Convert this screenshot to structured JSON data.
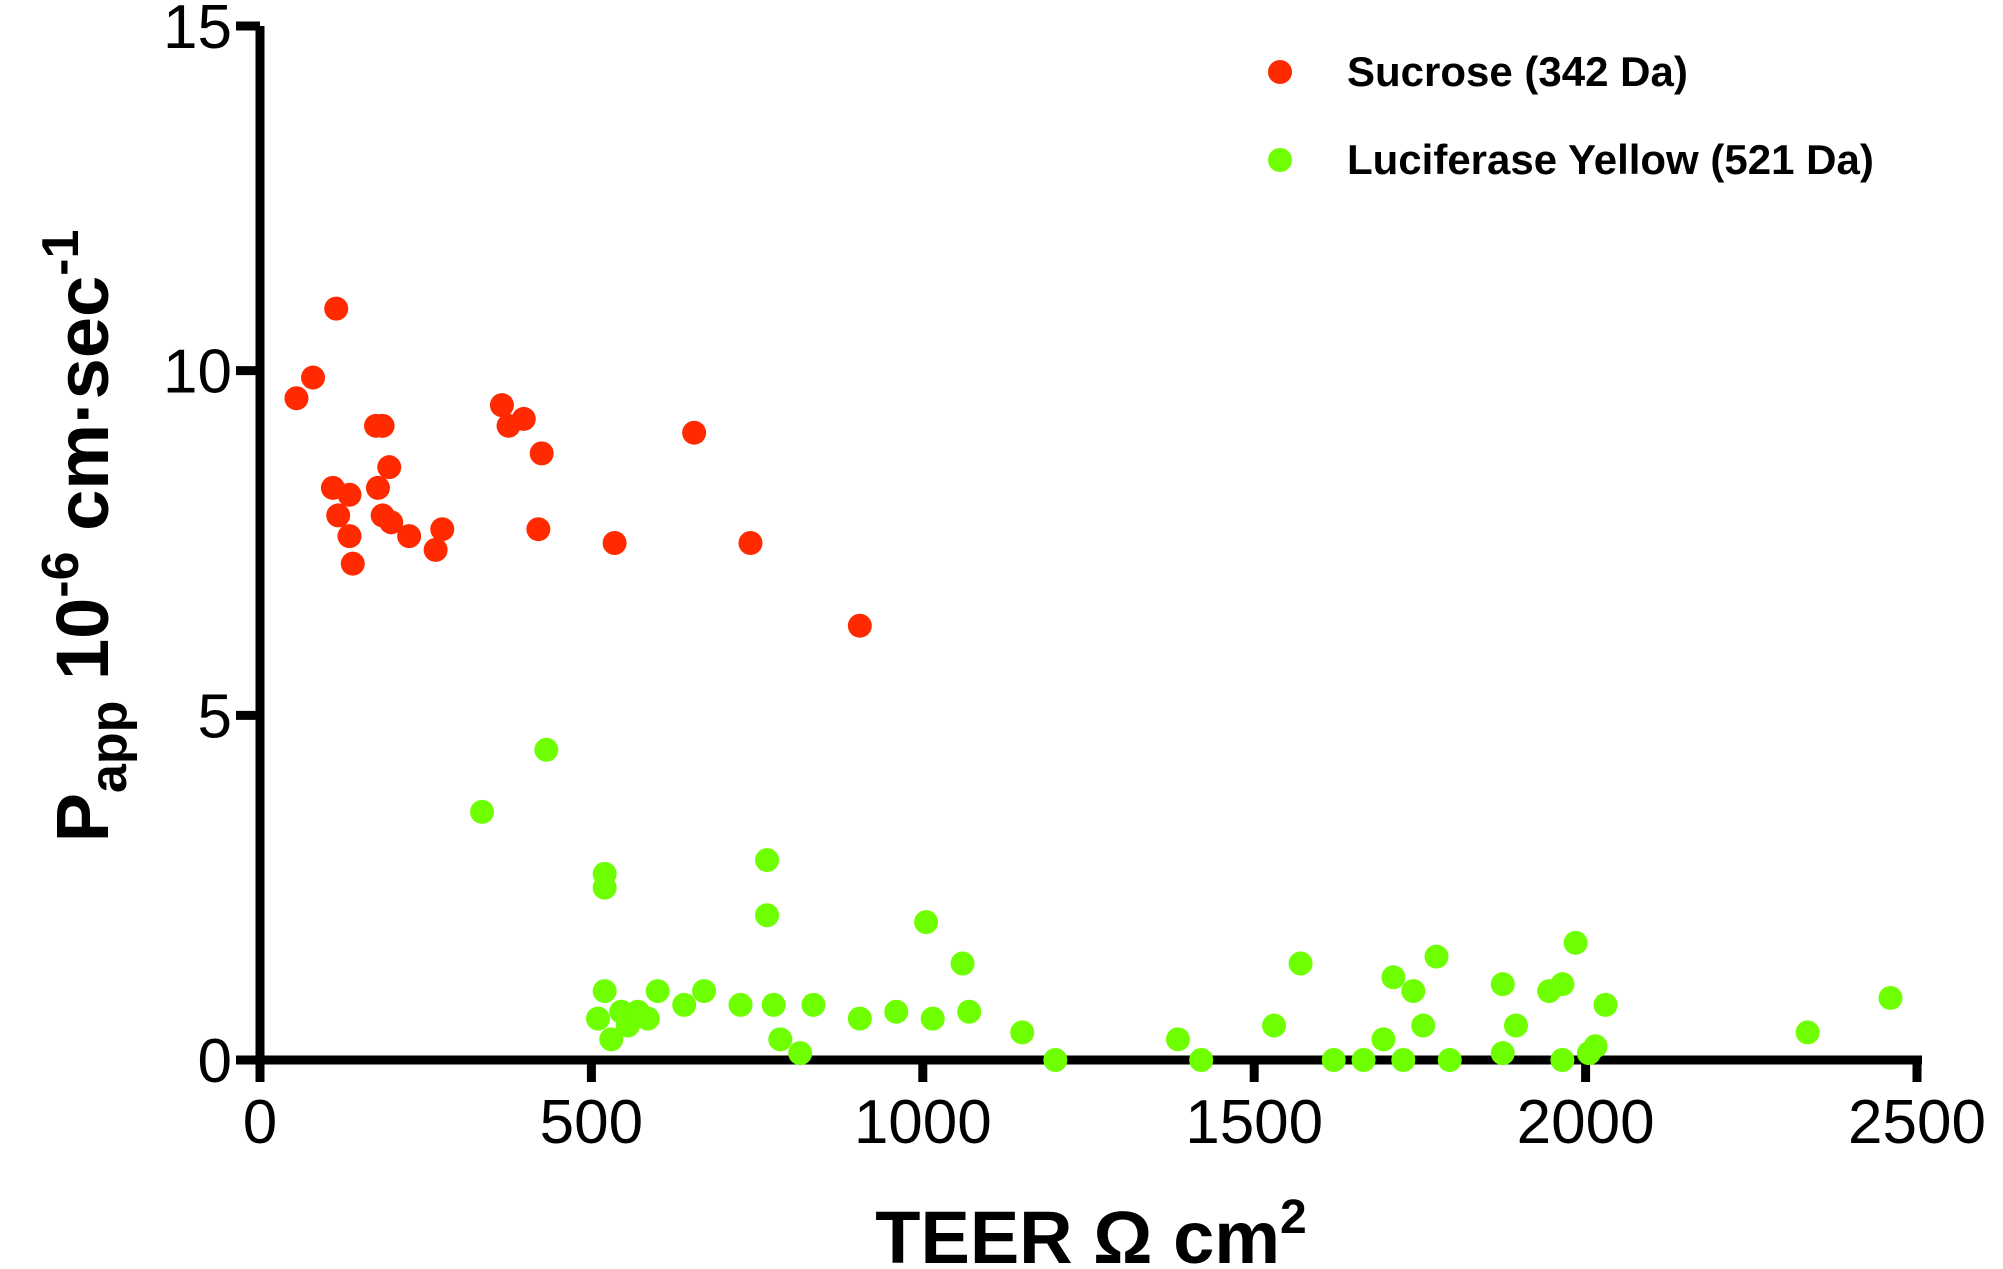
{
  "chart_data": {
    "type": "scatter",
    "title": "",
    "xlabel": "TEER Ω cm",
    "xlabel_superscript": "2",
    "ylabel": {
      "base": "P",
      "base_subscript": "app",
      "mid": " 10",
      "mid_superscript": "-6",
      "unit": " cm·sec",
      "unit_superscript": "-1"
    },
    "xlim": [
      0,
      2500
    ],
    "ylim": [
      0,
      15
    ],
    "xticks": [
      0,
      500,
      1000,
      1500,
      2000,
      2500
    ],
    "yticks": [
      0,
      5,
      10,
      15
    ],
    "xtick_labels": [
      "0",
      "500",
      "1000",
      "1500",
      "2000",
      "2500"
    ],
    "ytick_labels": [
      "0",
      "5",
      "10",
      "15"
    ],
    "legend_position": "top-right",
    "series": [
      {
        "name": "Sucrose (342 Da)",
        "color": "#ff2a00",
        "points": [
          [
            55,
            9.6
          ],
          [
            80,
            9.9
          ],
          [
            115,
            10.9
          ],
          [
            110,
            8.3
          ],
          [
            135,
            8.2
          ],
          [
            118,
            7.9
          ],
          [
            135,
            7.6
          ],
          [
            140,
            7.2
          ],
          [
            175,
            9.2
          ],
          [
            185,
            9.2
          ],
          [
            178,
            8.3
          ],
          [
            195,
            8.6
          ],
          [
            185,
            7.9
          ],
          [
            198,
            7.8
          ],
          [
            225,
            7.6
          ],
          [
            265,
            7.4
          ],
          [
            275,
            7.7
          ],
          [
            365,
            9.5
          ],
          [
            375,
            9.2
          ],
          [
            398,
            9.3
          ],
          [
            425,
            8.8
          ],
          [
            420,
            7.7
          ],
          [
            535,
            7.5
          ],
          [
            655,
            9.1
          ],
          [
            740,
            7.5
          ],
          [
            905,
            6.3
          ]
        ]
      },
      {
        "name": "Luciferase Yellow (521 Da)",
        "color": "#6eff00",
        "points": [
          [
            335,
            3.6
          ],
          [
            432,
            4.5
          ],
          [
            520,
            2.7
          ],
          [
            520,
            2.5
          ],
          [
            765,
            2.9
          ],
          [
            765,
            2.1
          ],
          [
            1005,
            2.0
          ],
          [
            1060,
            1.4
          ],
          [
            520,
            1.0
          ],
          [
            600,
            1.0
          ],
          [
            670,
            1.0
          ],
          [
            510,
            0.6
          ],
          [
            530,
            0.3
          ],
          [
            545,
            0.7
          ],
          [
            555,
            0.5
          ],
          [
            570,
            0.7
          ],
          [
            585,
            0.6
          ],
          [
            640,
            0.8
          ],
          [
            725,
            0.8
          ],
          [
            775,
            0.8
          ],
          [
            835,
            0.8
          ],
          [
            785,
            0.3
          ],
          [
            815,
            0.1
          ],
          [
            905,
            0.6
          ],
          [
            960,
            0.7
          ],
          [
            1015,
            0.6
          ],
          [
            1070,
            0.7
          ],
          [
            1150,
            0.4
          ],
          [
            1200,
            0.0
          ],
          [
            1385,
            0.3
          ],
          [
            1420,
            0.0
          ],
          [
            1530,
            0.5
          ],
          [
            1570,
            1.4
          ],
          [
            1620,
            0.0
          ],
          [
            1665,
            0.0
          ],
          [
            1695,
            0.3
          ],
          [
            1710,
            1.2
          ],
          [
            1725,
            0.0
          ],
          [
            1740,
            1.0
          ],
          [
            1755,
            0.5
          ],
          [
            1775,
            1.5
          ],
          [
            1795,
            0.0
          ],
          [
            1875,
            1.1
          ],
          [
            1875,
            0.1
          ],
          [
            1895,
            0.5
          ],
          [
            1945,
            1.0
          ],
          [
            1965,
            1.1
          ],
          [
            1965,
            0.0
          ],
          [
            1985,
            1.7
          ],
          [
            2005,
            0.1
          ],
          [
            2015,
            0.2
          ],
          [
            2030,
            0.8
          ],
          [
            2335,
            0.4
          ],
          [
            2460,
            0.9
          ]
        ]
      }
    ]
  }
}
